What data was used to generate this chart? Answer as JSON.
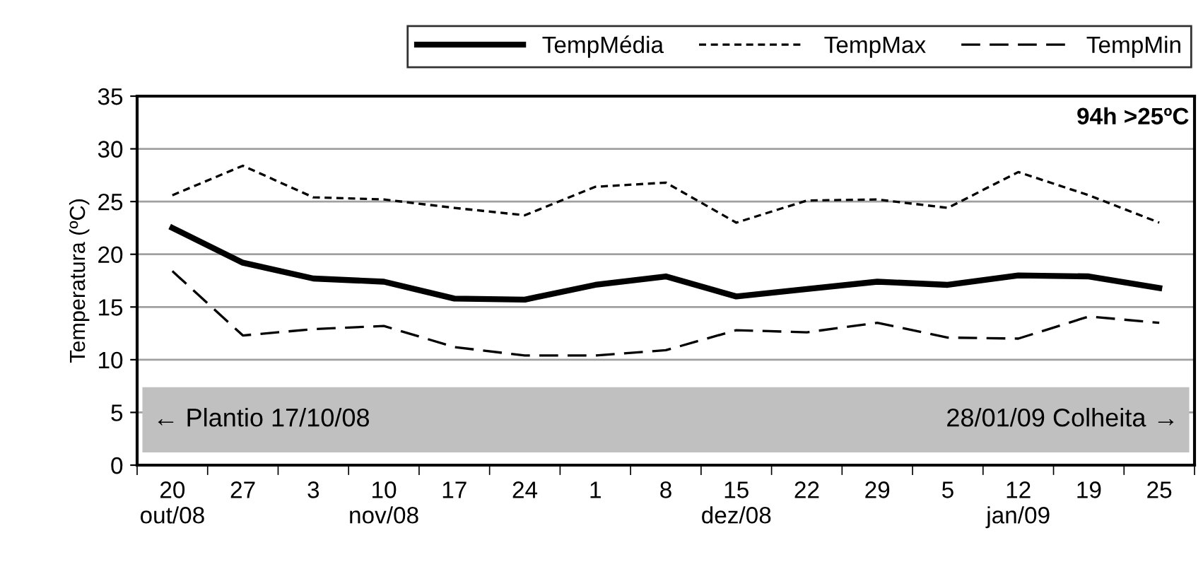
{
  "chart_data": {
    "type": "line",
    "ylabel": "Temperatura (ºC)",
    "categories": [
      "20\nout/08",
      "27",
      "3",
      "10\nnov/08",
      "17",
      "24",
      "1",
      "8",
      "15\ndez/08",
      "22",
      "29",
      "5",
      "12\njan/09",
      "19",
      "25"
    ],
    "series": [
      {
        "name": "TempMédia",
        "color": "#000000",
        "line_style": "solid",
        "values": [
          22.5,
          19.2,
          17.7,
          17.4,
          15.8,
          15.7,
          17.1,
          17.9,
          16.0,
          16.7,
          17.4,
          17.1,
          18.0,
          17.9,
          16.8
        ]
      },
      {
        "name": "TempMax",
        "color": "#000000",
        "line_style": "dotted",
        "values": [
          25.6,
          28.4,
          25.4,
          25.2,
          24.4,
          23.7,
          26.4,
          26.8,
          23.0,
          25.1,
          25.2,
          24.4,
          27.8,
          25.6,
          23.0
        ]
      },
      {
        "name": "TempMin",
        "color": "#000000",
        "line_style": "dashed",
        "values": [
          18.4,
          12.3,
          12.9,
          13.2,
          11.2,
          10.4,
          10.4,
          10.9,
          12.8,
          12.6,
          13.5,
          12.1,
          12.0,
          14.1,
          13.5
        ]
      }
    ],
    "ylim": [
      0,
      35
    ],
    "yticks": [
      0,
      5,
      10,
      15,
      20,
      25,
      30,
      35
    ],
    "grid": "y",
    "legend": "top",
    "marker": "none",
    "bands": [
      {
        "axis": "y",
        "from": 1.2,
        "to": 7.4,
        "color": "#c0c0c0",
        "label": "← Plantio 17/10/08"
      }
    ],
    "annotations": [
      "94h >25ºC",
      "28/01/09 Colheita →"
    ]
  }
}
